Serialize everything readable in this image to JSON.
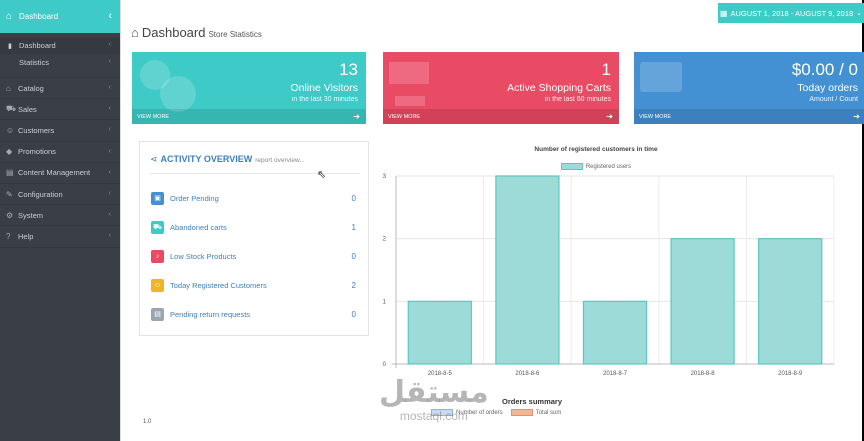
{
  "sidebar": {
    "top": {
      "label": "Dashboard",
      "icon": "home-icon"
    },
    "sub_items": [
      {
        "label": "Dashboard",
        "icon": "bar-chart-icon"
      },
      {
        "label": "Statistics",
        "icon": ""
      }
    ],
    "items": [
      {
        "label": "Catalog",
        "icon": "tags-icon"
      },
      {
        "label": "Sales",
        "icon": "cart-icon"
      },
      {
        "label": "Customers",
        "icon": "users-icon"
      },
      {
        "label": "Promotions",
        "icon": "tag-icon"
      },
      {
        "label": "Content Management",
        "icon": "document-icon"
      },
      {
        "label": "Configuration",
        "icon": "wrench-icon"
      },
      {
        "label": "System",
        "icon": "gear-icon"
      },
      {
        "label": "Help",
        "icon": "question-icon"
      }
    ]
  },
  "header": {
    "title": "Dashboard",
    "subtitle": "Store Statistics",
    "date_range": "AUGUST 1, 2018 - AUGUST 9, 2018"
  },
  "stats": [
    {
      "value": "13",
      "label": "Online Visitors",
      "sub": "in the last 30 minutes",
      "footer": "VIEW MORE",
      "color": "#3ecac6"
    },
    {
      "value": "1",
      "label": "Active Shopping Carts",
      "sub": "in the last 60 minutes",
      "footer": "VIEW MORE",
      "color": "#e94a64"
    },
    {
      "value": "$0.00 / 0",
      "label": "Today orders",
      "sub": "Amount / Count",
      "footer": "VIEW MORE",
      "color": "#4390d3"
    }
  ],
  "activity": {
    "title": "ACTIVITY OVERVIEW",
    "subtitle": "report overview...",
    "rows": [
      {
        "label": "Order Pending",
        "value": "0",
        "icon": "inbox-icon",
        "color": "#4390d3"
      },
      {
        "label": "Abandoned carts",
        "value": "1",
        "icon": "cart-icon",
        "color": "#3ecac6"
      },
      {
        "label": "Low Stock Products",
        "value": "0",
        "icon": "bell-icon",
        "color": "#e94a64"
      },
      {
        "label": "Today Registered Customers",
        "value": "2",
        "icon": "user-icon",
        "color": "#f0b429"
      },
      {
        "label": "Pending return requests",
        "value": "0",
        "icon": "box-icon",
        "color": "#9aa5b1"
      }
    ]
  },
  "chart_data": [
    {
      "type": "bar",
      "title": "Number of registered customers in time",
      "categories": [
        "2018-8-5",
        "2018-8-6",
        "2018-8-7",
        "2018-8-8",
        "2018-8-9"
      ],
      "series": [
        {
          "name": "Registered users",
          "values": [
            1,
            3,
            1,
            2,
            2
          ]
        }
      ],
      "ylim": [
        0,
        3
      ],
      "yticks": [
        "0",
        "1",
        "2",
        "3"
      ],
      "color": "#9ddbd8",
      "border": "#5cc6c2",
      "grid": true,
      "legend": "top"
    },
    {
      "type": "line",
      "title": "Orders summary",
      "series": [
        {
          "name": "Number of orders",
          "values": [],
          "color": "#c9d9ee"
        },
        {
          "name": "Total sum",
          "values": [],
          "color": "#f4b49a"
        }
      ],
      "yticks": [
        "1.0"
      ],
      "legend": "top"
    }
  ],
  "watermark": {
    "arabic": "مستقل",
    "latin": "mostaql.com"
  }
}
